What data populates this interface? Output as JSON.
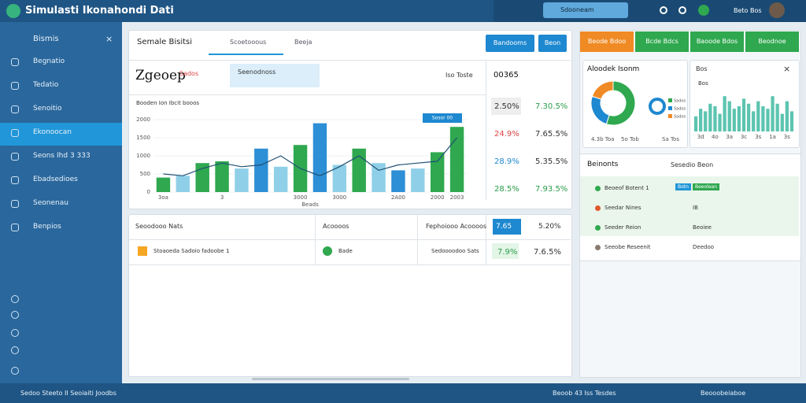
{
  "header": {
    "title": "Simulasti Ikonahondi Dati",
    "search": "Sdooneam",
    "user": "Beto Bos"
  },
  "sidebar": {
    "title": "Bismis",
    "items": [
      "Begnatio",
      "Tedatio",
      "Senoitio",
      "Ekonoocan",
      "Seons Ihd 3 333",
      "Ebadsedioes",
      "Seonenau",
      "Benpios"
    ]
  },
  "tabs": [
    "Semale Bisitsi",
    "Scoetooous",
    "Beeja"
  ],
  "buttons": [
    "Bandooms",
    "Beon"
  ],
  "kpi": {
    "value": "Zgeoep",
    "tag": "Sados",
    "box": "Seenodnoss",
    "right_label": "Iso Toste",
    "right_value": "00365"
  },
  "metrics": [
    [
      "2.50%",
      "7.30.5%"
    ],
    [
      "24.9%",
      "7.65.5%"
    ],
    [
      "28.9%",
      "5.35.5%"
    ],
    [
      "28.5%",
      "7.93.5%"
    ]
  ],
  "table": {
    "headers": [
      "Seoodooo Nats",
      "Acoooos",
      "Fephoiooo Acoooos",
      "7.65",
      "5.20%"
    ],
    "rows": [
      [
        "Stoaoeda Sadoio fadoobe 1",
        "Bade",
        "Sedoooodoo Sats",
        "7.9%",
        "7.6.5%"
      ]
    ]
  },
  "right_buttons": [
    "Beode Bdoo",
    "Bcde Bdcs",
    "Baoode Bdos",
    "Beodnoe"
  ],
  "list": {
    "title": "Beinonts",
    "search": "Sesedio Beon",
    "items": [
      {
        "label": "Beoeof Botent 1",
        "badges": [
          "Botn",
          "Beeolean"
        ]
      },
      {
        "label": "Seedar Nines",
        "value": "IB"
      },
      {
        "label": "Seeder Reion",
        "value": "Beoiee"
      },
      {
        "label": "Seeobe Reseenit",
        "value": "Deedoo"
      }
    ]
  },
  "footer": {
    "left": "Sedoo Steeto II Seoiaiti Joodbs",
    "mid": "Beoob 43 Iss Tesdes",
    "right": "Beooobeiaboe"
  },
  "chart_data": [
    {
      "type": "bar",
      "title": "Booden Ion Ibcit booos",
      "x_label": "Beads",
      "annotation": "Sosor 00",
      "categories": [
        "3oa",
        null,
        null,
        "3",
        null,
        null,
        null,
        "3000",
        null,
        "3000",
        null,
        null,
        "2A00",
        null,
        "2000",
        "2003"
      ],
      "values": [
        400,
        450,
        800,
        850,
        650,
        1200,
        700,
        1300,
        1900,
        750,
        1200,
        800,
        600,
        650,
        1100,
        1800
      ],
      "colors": [
        "#2fa84f",
        "#8fd0e8",
        "#2fa84f",
        "#2fa84f",
        "#8fd0e8",
        "#2d8fd5",
        "#8fd0e8",
        "#2fa84f",
        "#2d8fd5",
        "#8fd0e8",
        "#2fa84f",
        "#8fd0e8",
        "#2d8fd5",
        "#8fd0e8",
        "#2fa84f",
        "#2fa84f"
      ],
      "line": {
        "color": "#1f4f73",
        "values": [
          500,
          450,
          650,
          800,
          700,
          750,
          1000,
          650,
          450,
          700,
          1000,
          600,
          750,
          800,
          850,
          1500
        ]
      },
      "ylim": [
        0,
        2000
      ],
      "yticks": [
        0,
        500,
        1000,
        1500,
        2000
      ]
    },
    {
      "type": "pie",
      "title": "Aloodek Isonm",
      "values": [
        55,
        25,
        20
      ],
      "colors": [
        "#2fa84f",
        "#1e88d0",
        "#f08a24"
      ],
      "labels": [
        "Sadooo",
        "Sadooo",
        "Sadooo"
      ],
      "footer": [
        "4.3b Toa",
        "5o Tob",
        "Sa Tos"
      ]
    },
    {
      "type": "bar",
      "title": "Bos",
      "color": "#5cc4b0",
      "categories": [
        null,
        "3d",
        null,
        null,
        "4o",
        null,
        null,
        "3a",
        null,
        null,
        "3c",
        null,
        null,
        "3s",
        null,
        null,
        "1a",
        null,
        null,
        "3s",
        null
      ],
      "values": [
        30,
        45,
        40,
        55,
        50,
        35,
        70,
        60,
        45,
        50,
        65,
        55,
        40,
        60,
        50,
        45,
        70,
        55,
        35,
        60,
        40
      ],
      "ylim": [
        0,
        100
      ]
    }
  ]
}
